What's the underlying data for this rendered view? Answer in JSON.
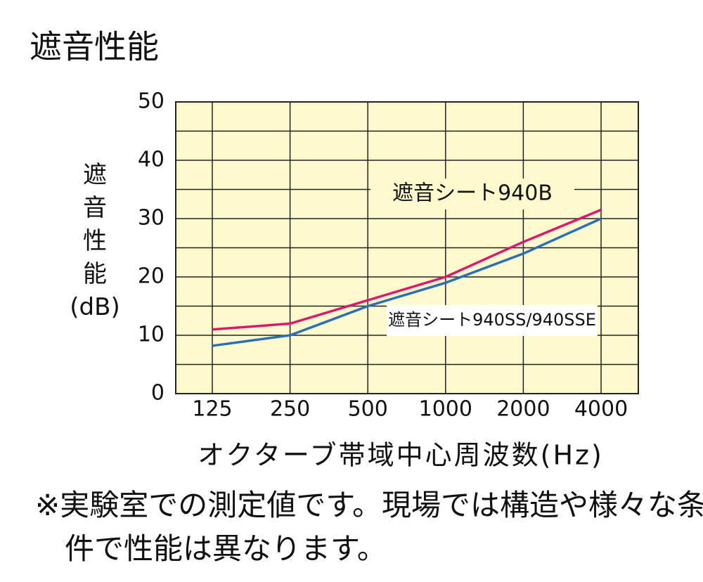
{
  "title": "遮音性能",
  "chart_data": {
    "type": "line",
    "categories": [
      "125",
      "250",
      "500",
      "1000",
      "2000",
      "4000"
    ],
    "series": [
      {
        "name": "遮音シート940B",
        "color": "#d81b6e",
        "values": [
          11,
          12,
          16,
          20,
          26,
          31.5
        ]
      },
      {
        "name": "遮音シート940SS/940SSE",
        "color": "#2a6fb8",
        "values": [
          8.2,
          10,
          15,
          19,
          24,
          30
        ]
      }
    ],
    "ylim": [
      0,
      50
    ],
    "yticks": [
      0,
      10,
      20,
      30,
      40,
      50
    ],
    "y_grid": [
      0,
      5,
      10,
      15,
      20,
      25,
      30,
      35,
      40,
      45,
      50
    ],
    "y_label": "遮音性能(dB)",
    "x_label": "オクターブ帯域中心周波数(Hz)",
    "plot_background": "#fffacd"
  },
  "note": "※実験室での測定値です。現場では構造や様々な条件で性能は異なります。"
}
